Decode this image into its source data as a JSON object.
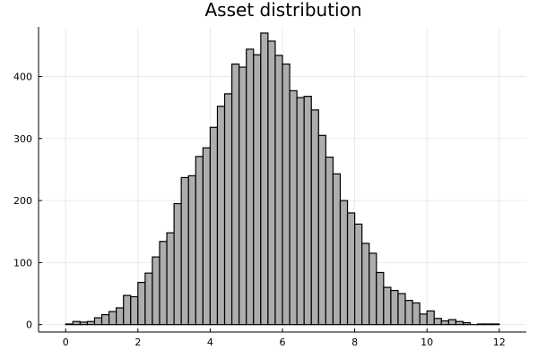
{
  "chart_data": {
    "type": "bar",
    "title": "Asset distribution",
    "xlabel": "",
    "ylabel": "",
    "xlim": [
      -0.75,
      12.75
    ],
    "ylim": [
      -12,
      480
    ],
    "xticks": [
      0,
      2,
      4,
      6,
      8,
      10,
      12
    ],
    "yticks": [
      0,
      100,
      200,
      300,
      400
    ],
    "grid": true,
    "legend": "none",
    "bar_color": "#adadad",
    "edge_color": "#000000",
    "bin_width": 0.2,
    "bin_start": 0,
    "values": [
      1,
      5,
      4,
      5,
      11,
      16,
      21,
      27,
      47,
      45,
      68,
      83,
      109,
      134,
      148,
      195,
      237,
      240,
      271,
      285,
      318,
      352,
      372,
      420,
      415,
      444,
      435,
      470,
      457,
      434,
      420,
      377,
      366,
      368,
      346,
      305,
      270,
      243,
      200,
      180,
      162,
      131,
      115,
      84,
      60,
      55,
      50,
      39,
      35,
      17,
      22,
      10,
      6,
      8,
      5,
      3,
      0,
      1,
      1,
      1
    ]
  }
}
